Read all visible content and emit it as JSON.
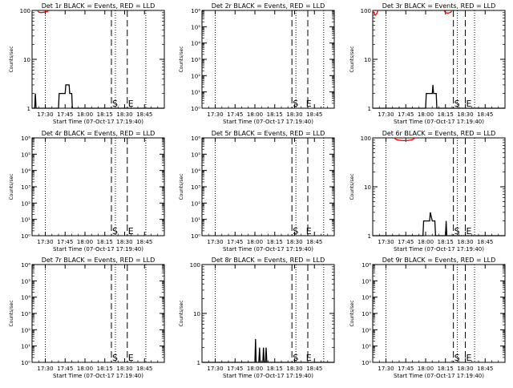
{
  "colors": {
    "events": "#000000",
    "lld": "#ff0000",
    "background": "#ffffff"
  },
  "common": {
    "xlabel": "Start Time (07-Oct-17 17:19:40)",
    "ylabel": "Counts/sec",
    "x_ticks": [
      "17:30",
      "17:45",
      "18:00",
      "18:15",
      "18:30",
      "18:45"
    ],
    "x_ticks_minutes": [
      30,
      45,
      60,
      75,
      90,
      105
    ],
    "x_range_minutes": [
      20,
      120
    ]
  },
  "chart_data": [
    {
      "type": "line",
      "title": "Det 1r BLACK = Events, RED = LLD",
      "yscale": "log",
      "ylim": [
        1,
        100
      ],
      "y_ticks": [
        "1",
        "10",
        "100"
      ],
      "ylabel": "Counts/sec",
      "xlabel": "Start Time (07-Oct-17 17:19:40)",
      "dotted_lines": [
        30,
        83,
        106
      ],
      "dashed_lines": [
        80,
        92
      ],
      "markers": [
        {
          "text": "S",
          "x": 80
        },
        {
          "text": "E",
          "x": 92
        }
      ],
      "series": [
        {
          "color": "#ff0000",
          "points": [
            [
              24,
              100
            ],
            [
              25,
              92
            ],
            [
              27,
              90
            ],
            [
              29,
              92
            ],
            [
              31,
              94
            ],
            [
              33,
              100
            ]
          ]
        },
        {
          "color": "#000000",
          "points": [
            [
              20,
              1
            ],
            [
              22,
              1
            ],
            [
              22.5,
              2
            ],
            [
              23,
              1
            ],
            [
              40,
              1
            ],
            [
              40.5,
              2
            ],
            [
              45,
              2
            ],
            [
              45.5,
              3
            ],
            [
              48,
              3
            ],
            [
              48.5,
              2
            ],
            [
              50,
              2
            ],
            [
              50.5,
              1
            ],
            [
              120,
              1
            ]
          ]
        }
      ]
    },
    {
      "type": "line",
      "title": "Det 2r BLACK = Events, RED = LLD",
      "yscale": "log",
      "ylim": [
        1,
        1000000
      ],
      "y_ticks": [
        "10⁰",
        "10¹",
        "10²",
        "10³",
        "10⁴",
        "10⁵",
        "10⁶"
      ],
      "ylabel": "Counts/sec",
      "xlabel": "Start Time (07-Oct-17 17:19:40)",
      "dotted_lines": [
        30,
        91,
        112
      ],
      "dashed_lines": [
        88,
        100
      ],
      "markers": [
        {
          "text": "S",
          "x": 88
        },
        {
          "text": "E",
          "x": 98
        }
      ],
      "series": []
    },
    {
      "type": "line",
      "title": "Det 3r BLACK = Events, RED = LLD",
      "yscale": "log",
      "ylim": [
        1,
        100
      ],
      "y_ticks": [
        "1",
        "10",
        "100"
      ],
      "ylabel": "Counts/sec",
      "xlabel": "Start Time (07-Oct-17 17:19:40)",
      "dotted_lines": [
        30,
        84,
        97
      ],
      "dashed_lines": [
        81,
        90
      ],
      "markers": [
        {
          "text": "S",
          "x": 81
        },
        {
          "text": "E",
          "x": 90
        }
      ],
      "series": [
        {
          "color": "#ff0000",
          "points": [
            [
              20,
              100
            ],
            [
              21,
              88
            ],
            [
              22,
              80
            ],
            [
              23,
              85
            ],
            [
              24,
              100
            ]
          ]
        },
        {
          "color": "#ff0000",
          "points": [
            [
              74,
              100
            ],
            [
              75,
              90
            ],
            [
              77,
              88
            ],
            [
              79,
              92
            ],
            [
              80,
              100
            ]
          ]
        },
        {
          "color": "#000000",
          "points": [
            [
              20,
              1
            ],
            [
              60,
              1
            ],
            [
              60.5,
              2
            ],
            [
              65,
              2
            ],
            [
              65.5,
              3
            ],
            [
              66,
              2
            ],
            [
              68,
              2
            ],
            [
              68.5,
              1
            ],
            [
              120,
              1
            ]
          ]
        }
      ]
    },
    {
      "type": "line",
      "title": "Det 4r BLACK = Events, RED = LLD",
      "yscale": "log",
      "ylim": [
        1,
        1000000
      ],
      "y_ticks": [
        "10⁰",
        "10¹",
        "10²",
        "10³",
        "10⁴",
        "10⁵",
        "10⁶"
      ],
      "ylabel": "Counts/sec",
      "xlabel": "Start Time (07-Oct-17 17:19:40)",
      "dotted_lines": [
        30,
        83,
        106
      ],
      "dashed_lines": [
        80,
        92
      ],
      "markers": [
        {
          "text": "S",
          "x": 80
        },
        {
          "text": "E",
          "x": 92
        }
      ],
      "series": []
    },
    {
      "type": "line",
      "title": "Det 5r BLACK = Events, RED = LLD",
      "yscale": "log",
      "ylim": [
        1,
        1000000
      ],
      "y_ticks": [
        "10⁰",
        "10¹",
        "10²",
        "10³",
        "10⁴",
        "10⁵",
        "10⁶"
      ],
      "ylabel": "Counts/sec",
      "xlabel": "Start Time (07-Oct-17 17:19:40)",
      "dotted_lines": [
        30,
        91,
        112
      ],
      "dashed_lines": [
        88,
        100
      ],
      "markers": [
        {
          "text": "S",
          "x": 88
        },
        {
          "text": "E",
          "x": 98
        }
      ],
      "series": []
    },
    {
      "type": "line",
      "title": "Det 6r BLACK = Events, RED = LLD",
      "yscale": "log",
      "ylim": [
        1,
        100
      ],
      "y_ticks": [
        "1",
        "10",
        "100"
      ],
      "ylabel": "Counts/sec",
      "xlabel": "Start Time (07-Oct-17 17:19:40)",
      "dotted_lines": [
        30,
        84,
        97
      ],
      "dashed_lines": [
        81,
        90
      ],
      "markers": [
        {
          "text": "S",
          "x": 81
        },
        {
          "text": "E",
          "x": 90
        }
      ],
      "series": [
        {
          "color": "#ff0000",
          "points": [
            [
              36,
              100
            ],
            [
              38,
              92
            ],
            [
              42,
              88
            ],
            [
              46,
              88
            ],
            [
              50,
              92
            ],
            [
              52,
              100
            ]
          ]
        },
        {
          "color": "#000000",
          "points": [
            [
              20,
              1
            ],
            [
              58,
              1
            ],
            [
              58.5,
              2
            ],
            [
              63,
              2
            ],
            [
              63.5,
              3
            ],
            [
              65,
              2
            ],
            [
              67,
              2
            ],
            [
              67.5,
              1
            ],
            [
              75,
              1
            ],
            [
              75.5,
              2
            ],
            [
              76,
              1
            ],
            [
              120,
              1
            ]
          ]
        }
      ]
    },
    {
      "type": "line",
      "title": "Det 7r BLACK = Events, RED = LLD",
      "yscale": "log",
      "ylim": [
        1,
        1000000
      ],
      "y_ticks": [
        "10⁰",
        "10¹",
        "10²",
        "10³",
        "10⁴",
        "10⁵",
        "10⁶"
      ],
      "ylabel": "Counts/sec",
      "xlabel": "Start Time (07-Oct-17 17:19:40)",
      "dotted_lines": [
        30,
        83,
        106
      ],
      "dashed_lines": [
        80,
        92
      ],
      "markers": [
        {
          "text": "S",
          "x": 80
        },
        {
          "text": "E",
          "x": 92
        }
      ],
      "series": []
    },
    {
      "type": "line",
      "title": "Det 8r BLACK = Events, RED = LLD",
      "yscale": "log",
      "ylim": [
        1,
        100
      ],
      "y_ticks": [
        "1",
        "10",
        "100"
      ],
      "ylabel": "Counts/sec",
      "xlabel": "Start Time (07-Oct-17 17:19:40)",
      "dotted_lines": [
        30,
        91,
        112
      ],
      "dashed_lines": [
        88,
        100
      ],
      "markers": [
        {
          "text": "S",
          "x": 88
        },
        {
          "text": "E",
          "x": 98
        }
      ],
      "series": [
        {
          "color": "#000000",
          "points": [
            [
              20,
              1
            ],
            [
              60,
              1
            ],
            [
              60.5,
              3
            ],
            [
              61,
              1
            ],
            [
              63,
              1
            ],
            [
              63.5,
              2
            ],
            [
              64,
              1
            ],
            [
              66,
              1
            ],
            [
              66.5,
              2
            ],
            [
              67,
              1
            ],
            [
              68,
              1
            ],
            [
              68.5,
              2
            ],
            [
              69,
              1
            ],
            [
              120,
              1
            ]
          ]
        }
      ]
    },
    {
      "type": "line",
      "title": "Det 9r BLACK = Events, RED = LLD",
      "yscale": "log",
      "ylim": [
        1,
        1000000
      ],
      "y_ticks": [
        "10⁰",
        "10¹",
        "10²",
        "10³",
        "10⁴",
        "10⁵",
        "10⁶"
      ],
      "ylabel": "Counts/sec",
      "xlabel": "Start Time (07-Oct-17 17:19:40)",
      "dotted_lines": [
        30,
        84,
        97
      ],
      "dashed_lines": [
        81,
        90
      ],
      "markers": [
        {
          "text": "S",
          "x": 81
        },
        {
          "text": "E",
          "x": 90
        }
      ],
      "series": []
    }
  ]
}
